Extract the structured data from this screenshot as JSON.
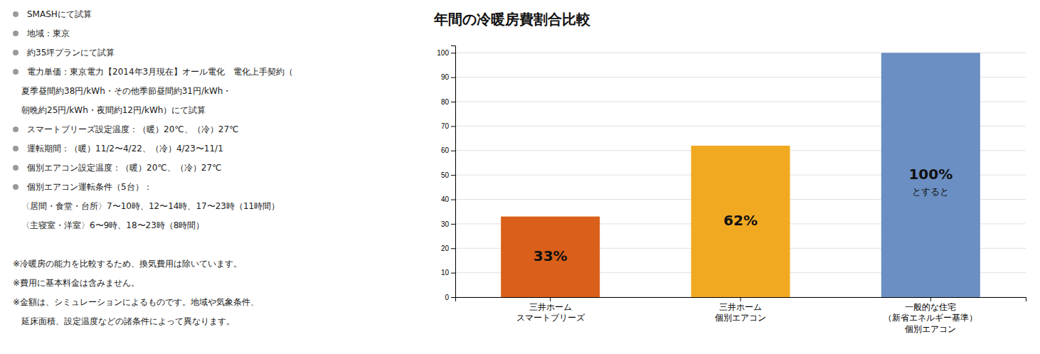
{
  "chart_data": {
    "type": "bar",
    "title": "年間の冷暖房費割合比較",
    "categories": [
      "三井ホーム\nスマートブリーズ",
      "三井ホーム\n個別エアコン",
      "一般的な住宅\n（新省エネルギー基準）\n個別エアコン"
    ],
    "values": [
      33,
      62,
      100
    ],
    "value_labels": [
      "33%",
      "62%",
      "100%"
    ],
    "data_labels": true,
    "colors": [
      "#d95f1a",
      "#f2a922",
      "#6b8fc2"
    ],
    "ylim": [
      0,
      103
    ],
    "yticks": [
      0,
      10,
      20,
      30,
      40,
      50,
      60,
      70,
      80,
      90,
      100
    ],
    "grid": true,
    "annotations": [
      "とすると"
    ],
    "notes": [
      {
        "text": "SMASHにて試算",
        "bullet": true
      },
      {
        "text": "地域：東京",
        "bullet": true
      },
      {
        "text": "約35坪プランにて試算",
        "bullet": true
      },
      {
        "text": "電力単価：東京電力【2014年3月現在】オール電化　電化上手契約（",
        "bullet": true
      },
      {
        "text": "　夏季昼間約38円/kWh・その他季節昼間約31円/kWh・",
        "bullet": false
      },
      {
        "text": "　朝晩約25円/kWh・夜間約12円/kWh）にて試算",
        "bullet": false
      },
      {
        "text": "スマートブリーズ設定温度：（暖）20℃、（冷）27℃",
        "bullet": true
      },
      {
        "text": "運転期間：（暖）11/2〜4/22、（冷）4/23〜11/1",
        "bullet": true
      },
      {
        "text": "個別エアコン設定温度：（暖）20℃、（冷）27℃",
        "bullet": true
      },
      {
        "text": "個別エアコン運転条件（5台）：",
        "bullet": true
      },
      {
        "text": "　〈居間・食堂・台所〉7〜10時、12〜14時、17〜23時（11時間）",
        "bullet": false
      },
      {
        "text": "　〈主寝室・洋室〉6〜9時、18〜23時（8時間）",
        "bullet": false
      }
    ],
    "footnotes": [
      "※冷暖房の能力を比較するため、換気費用は除いています。",
      "※費用に基本料金は含みません。",
      "※金額は、シミュレーションによるものです。地域や気象条件、",
      "　延床面積、設定温度などの諸条件によって異なります。"
    ]
  }
}
